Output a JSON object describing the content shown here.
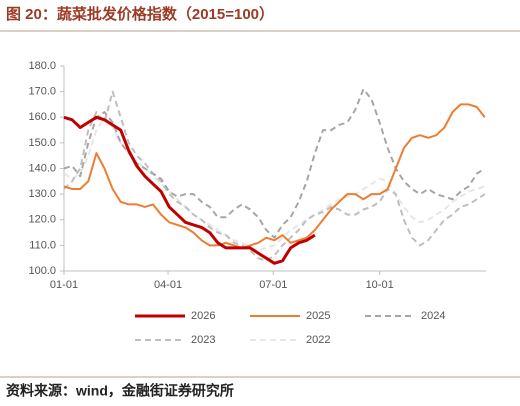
{
  "chart_data": {
    "type": "line",
    "title": "图 20：蔬菜批发价格指数（2015=100）",
    "source": "资料来源：wind，金融街证券研究所",
    "x": [
      0,
      7,
      14,
      21,
      28,
      35,
      42,
      49,
      56,
      63,
      70,
      77,
      84,
      91,
      98,
      105,
      112,
      119,
      126,
      133,
      140,
      147,
      154,
      161,
      168,
      175,
      182,
      189,
      196,
      203,
      210,
      217,
      224,
      231,
      238,
      245,
      252,
      259,
      266,
      273,
      280,
      287,
      294,
      301,
      308,
      315,
      322,
      329,
      336,
      343,
      350,
      357,
      364
    ],
    "xlim": [
      0,
      365
    ],
    "xticks": [
      {
        "value": 0,
        "label": "01-01"
      },
      {
        "value": 90,
        "label": "04-01"
      },
      {
        "value": 181,
        "label": "07-01"
      },
      {
        "value": 273,
        "label": "10-01"
      }
    ],
    "ylim": [
      100,
      180
    ],
    "yticks": [
      {
        "value": 100,
        "label": "100.0"
      },
      {
        "value": 110,
        "label": "110.0"
      },
      {
        "value": 120,
        "label": "120.0"
      },
      {
        "value": 130,
        "label": "130.0"
      },
      {
        "value": 140,
        "label": "140.0"
      },
      {
        "value": 150,
        "label": "150.0"
      },
      {
        "value": 160,
        "label": "160.0"
      },
      {
        "value": 170,
        "label": "170.0"
      },
      {
        "value": 180,
        "label": "180.0"
      }
    ],
    "grid": false,
    "legend": "bottom",
    "series": [
      {
        "name": "2026",
        "color": "#c00000",
        "width": 3,
        "dashed": false,
        "values": [
          160,
          159,
          156,
          158,
          160,
          159,
          157,
          155,
          147,
          141,
          137,
          134,
          131,
          125,
          122,
          119,
          118,
          117,
          115,
          111,
          109,
          109,
          109,
          109,
          107,
          105,
          103,
          104,
          109,
          111,
          112,
          114,
          null,
          null,
          null,
          null,
          null,
          null,
          null,
          null,
          null,
          null,
          null,
          null,
          null,
          null,
          null,
          null,
          null,
          null,
          null,
          null,
          null
        ]
      },
      {
        "name": "2025",
        "color": "#ed7d31",
        "width": 2,
        "dashed": false,
        "values": [
          133,
          132,
          132,
          135,
          146,
          140,
          132,
          127,
          126,
          126,
          125,
          126,
          122,
          119,
          118,
          117,
          115,
          112,
          110,
          110,
          111,
          110,
          109,
          110,
          111,
          113,
          112,
          114,
          111,
          112,
          113,
          116,
          120,
          124,
          127,
          130,
          130,
          128,
          130,
          130,
          132,
          140,
          148,
          152,
          153,
          152,
          153,
          156,
          162,
          165,
          165,
          164,
          160
        ]
      },
      {
        "name": "2024",
        "color": "#a6a6a6",
        "width": 2,
        "dashed": true,
        "values": [
          140,
          141,
          137,
          150,
          160,
          162,
          158,
          150,
          146,
          142,
          140,
          138,
          136,
          131,
          129,
          130,
          130,
          127,
          125,
          121,
          121,
          124,
          126,
          124,
          121,
          116,
          113,
          118,
          121,
          127,
          135,
          146,
          155,
          155,
          157,
          158,
          163,
          171,
          167,
          158,
          148,
          140,
          135,
          132,
          130,
          132,
          130,
          129,
          128,
          131,
          133,
          138,
          140
        ]
      },
      {
        "name": "2023",
        "color": "#bfbfbf",
        "width": 2,
        "dashed": true,
        "values": [
          132,
          135,
          140,
          155,
          162,
          158,
          170,
          160,
          150,
          145,
          142,
          138,
          135,
          130,
          127,
          125,
          122,
          120,
          117,
          115,
          114,
          111,
          110,
          108,
          105,
          104,
          106,
          110,
          113,
          116,
          120,
          122,
          123,
          125,
          124,
          122,
          122,
          124,
          125,
          127,
          132,
          130,
          120,
          113,
          110,
          112,
          116,
          120,
          122,
          125,
          126,
          128,
          130
        ]
      },
      {
        "name": "2022",
        "color": "#e6e6e6",
        "width": 2,
        "dashed": true,
        "values": [
          138,
          136,
          138,
          145,
          155,
          160,
          156,
          150,
          146,
          143,
          140,
          137,
          134,
          131,
          128,
          125,
          122,
          120,
          118,
          116,
          114,
          112,
          111,
          109,
          108,
          109,
          110,
          113,
          116,
          118,
          120,
          122,
          124,
          126,
          128,
          129,
          130,
          132,
          134,
          136,
          135,
          130,
          125,
          121,
          119,
          120,
          122,
          124,
          127,
          129,
          131,
          132,
          133
        ]
      }
    ]
  }
}
